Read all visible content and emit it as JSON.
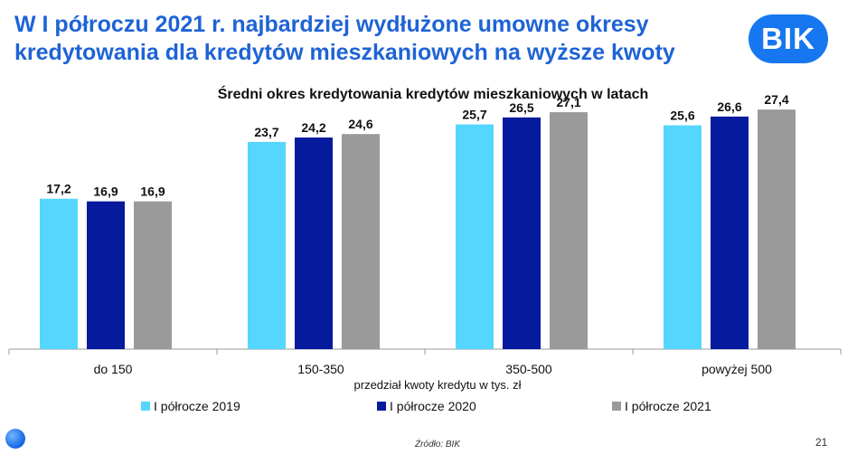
{
  "slide": {
    "headline": "W I półroczu 2021 r. najbardziej wydłużone umowne okresy kredytowania dla kredytów mieszkaniowych na wyższe kwoty",
    "logo_text": "BIK",
    "source": "Źródło: BIK",
    "page_number": "21"
  },
  "colors": {
    "headline": "#1e63d6",
    "logo": "#1677f0",
    "series": [
      "#55d6ff",
      "#061a9e",
      "#9a9a9a"
    ]
  },
  "chart_data": {
    "type": "bar",
    "title": "Średni okres kredytowania kredytów mieszkaniowych w latach",
    "xlabel": "przedział kwoty kredytu w tys. zł",
    "ylabel": "",
    "ylim": [
      0,
      30
    ],
    "grid": false,
    "legend_position": "bottom",
    "categories": [
      "do 150",
      "150-350",
      "350-500",
      "powyżej 500"
    ],
    "series": [
      {
        "name": "I półrocze 2019",
        "values": [
          17.2,
          23.7,
          25.7,
          25.6
        ],
        "labels": [
          "17,2",
          "23,7",
          "25,7",
          "25,6"
        ]
      },
      {
        "name": "I półrocze 2020",
        "values": [
          16.9,
          24.2,
          26.5,
          26.6
        ],
        "labels": [
          "16,9",
          "24,2",
          "26,5",
          "26,6"
        ]
      },
      {
        "name": "I półrocze 2021",
        "values": [
          16.9,
          24.6,
          27.1,
          27.4
        ],
        "labels": [
          "16,9",
          "24,6",
          "27,1",
          "27,4"
        ]
      }
    ]
  }
}
